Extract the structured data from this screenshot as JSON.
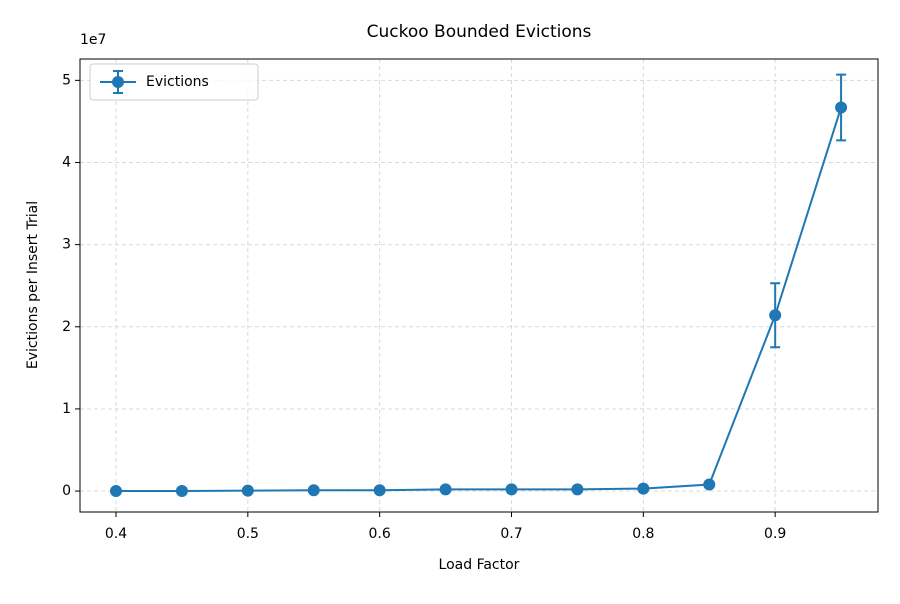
{
  "chart_data": {
    "type": "line",
    "title": "Cuckoo Bounded Evictions",
    "x_label": "Load Factor",
    "y_label": "Evictions per Insert Trial",
    "y_offset_label": "1e7",
    "x": [
      0.4,
      0.45,
      0.5,
      0.55,
      0.6,
      0.65,
      0.7,
      0.75,
      0.8,
      0.85,
      0.9,
      0.95
    ],
    "series": [
      {
        "name": "Evictions",
        "color": "#1f77b4",
        "values": [
          0.0,
          0.0,
          0.005,
          0.01,
          0.01,
          0.02,
          0.02,
          0.02,
          0.03,
          0.08,
          2.14,
          4.67
        ],
        "errors": [
          0,
          0,
          0,
          0,
          0,
          0,
          0,
          0,
          0,
          0,
          0.39,
          0.4
        ]
      }
    ],
    "xlim": [
      0.3727,
      0.978
    ],
    "ylim": [
      -0.255,
      5.26
    ],
    "xticks": [
      0.4,
      0.5,
      0.6,
      0.7,
      0.8,
      0.9
    ],
    "yticks": [
      0,
      1,
      2,
      3,
      4,
      5
    ],
    "grid": true,
    "legend": "upper left"
  }
}
